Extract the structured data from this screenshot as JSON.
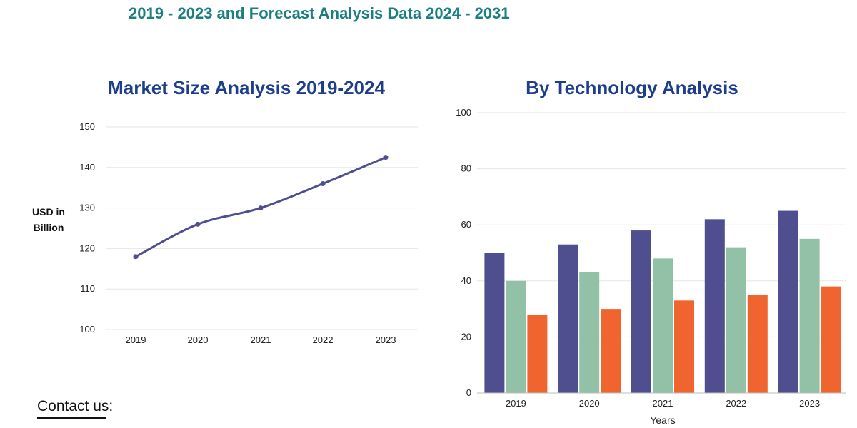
{
  "header": {
    "subtitle": "2019 - 2023 and Forecast Analysis Data 2024 - 2031"
  },
  "footer": {
    "contact_label": "Contact us:"
  },
  "colors": {
    "subtitle": "#1b7f7f",
    "chart_title": "#1e3e8c",
    "line": "#4f4f8f",
    "series": [
      "#4f4f8f",
      "#93c1a7",
      "#f0652f"
    ]
  },
  "chart_data": [
    {
      "type": "line",
      "title": "Market Size Analysis 2019-2024",
      "xlabel": "",
      "ylabel": "USD in Billion",
      "x": [
        "2019",
        "2020",
        "2021",
        "2022",
        "2023"
      ],
      "values": [
        118,
        126,
        130,
        136,
        142.5
      ],
      "ylim": [
        100,
        150
      ],
      "yticks": [
        100,
        110,
        120,
        130,
        140,
        150
      ],
      "grid": true
    },
    {
      "type": "bar",
      "title": "By Technology Analysis",
      "xlabel": "Years",
      "ylabel": "",
      "categories": [
        "2019",
        "2020",
        "2021",
        "2022",
        "2023"
      ],
      "series": [
        {
          "name": "",
          "values": [
            50,
            53,
            58,
            62,
            65
          ]
        },
        {
          "name": "",
          "values": [
            40,
            43,
            48,
            52,
            55
          ]
        },
        {
          "name": "",
          "values": [
            28,
            30,
            33,
            35,
            38
          ]
        }
      ],
      "ylim": [
        0,
        100
      ],
      "yticks": [
        0,
        20,
        40,
        60,
        80,
        100
      ],
      "grid": true
    }
  ]
}
